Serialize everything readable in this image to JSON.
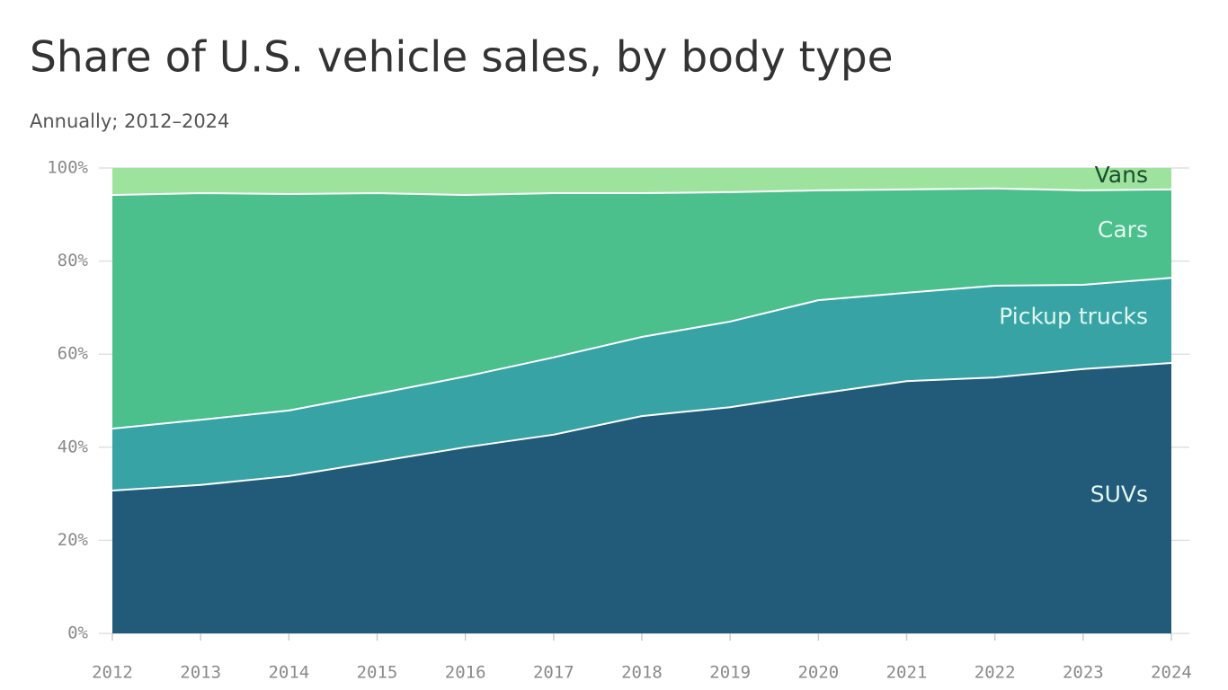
{
  "chart_data": {
    "type": "stacked_area",
    "title": "Share of U.S. vehicle sales, by body type",
    "subtitle": "Annually; 2012–2024",
    "x": [
      2012,
      2013,
      2014,
      2015,
      2016,
      2017,
      2018,
      2019,
      2020,
      2021,
      2022,
      2023,
      2024
    ],
    "xlim": [
      2012,
      2024
    ],
    "xticks": [
      2012,
      2013,
      2014,
      2015,
      2016,
      2017,
      2018,
      2019,
      2020,
      2021,
      2022,
      2023,
      2024
    ],
    "ylim": [
      0,
      100
    ],
    "yticks": [
      {
        "value": 0,
        "label": "0%"
      },
      {
        "value": 20,
        "label": "20%"
      },
      {
        "value": 40,
        "label": "40%"
      },
      {
        "value": 60,
        "label": "60%"
      },
      {
        "value": 80,
        "label": "80%"
      },
      {
        "value": 100,
        "label": "100%"
      }
    ],
    "grid": true,
    "series": [
      {
        "name": "SUVs",
        "color": "#225a7a",
        "label_color": "#e0f7f0",
        "values": [
          30.7,
          31.9,
          33.8,
          36.9,
          40.0,
          42.7,
          46.7,
          48.6,
          51.5,
          54.2,
          55.0,
          56.8,
          58.1
        ]
      },
      {
        "name": "Pickup trucks",
        "color": "#38a3a5",
        "label_color": "#e0f7f0",
        "values": [
          13.3,
          14.0,
          14.1,
          14.6,
          15.2,
          16.6,
          17.0,
          18.4,
          20.1,
          19.0,
          19.7,
          18.1,
          18.3
        ]
      },
      {
        "name": "Cars",
        "color": "#4bbf8c",
        "label_color": "#e0f7f0",
        "values": [
          50.2,
          48.7,
          46.5,
          43.1,
          39.0,
          35.3,
          30.9,
          27.8,
          23.6,
          22.2,
          20.9,
          20.3,
          19.0
        ]
      },
      {
        "name": "Vans",
        "color": "#9de39d",
        "label_color": "#1a4d2e",
        "values": [
          5.8,
          5.4,
          5.6,
          5.4,
          5.8,
          5.4,
          5.4,
          5.2,
          4.8,
          4.6,
          4.4,
          4.8,
          4.6
        ]
      }
    ]
  }
}
